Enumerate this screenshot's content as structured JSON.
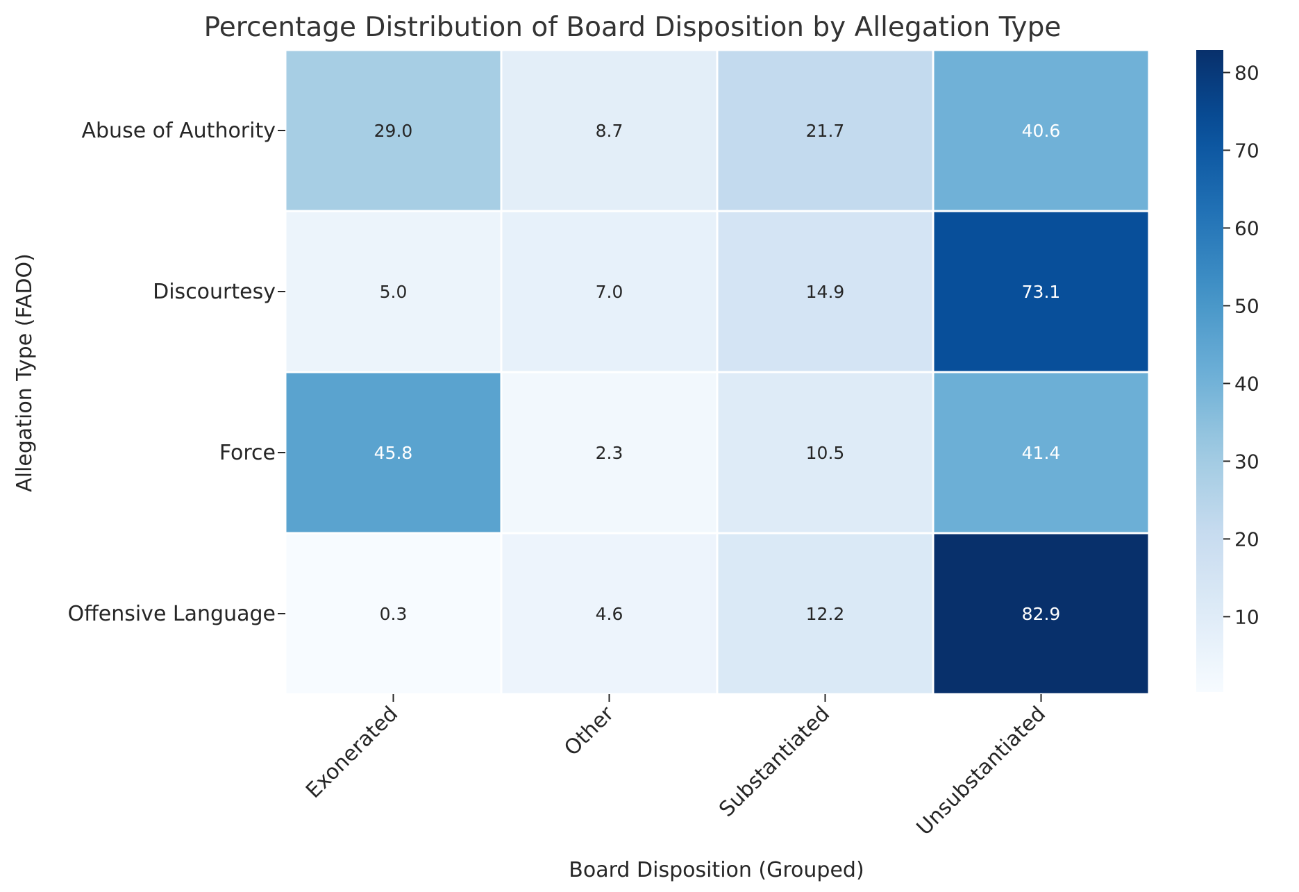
{
  "chart_data": {
    "type": "heatmap",
    "title": "Percentage Distribution of Board Disposition by Allegation Type",
    "xlabel": "Board Disposition (Grouped)",
    "ylabel": "Allegation Type (FADO)",
    "x_categories": [
      "Exonerated",
      "Other",
      "Substantiated",
      "Unsubstantiated"
    ],
    "y_categories": [
      "Abuse of Authority",
      "Discourtesy",
      "Force",
      "Offensive Language"
    ],
    "values": [
      [
        29.0,
        8.7,
        21.7,
        40.6
      ],
      [
        5.0,
        7.0,
        14.9,
        73.1
      ],
      [
        45.8,
        2.3,
        10.5,
        41.4
      ],
      [
        0.3,
        4.6,
        12.2,
        82.9
      ]
    ],
    "value_labels": [
      [
        "29.0",
        "8.7",
        "21.7",
        "40.6"
      ],
      [
        "5.0",
        "7.0",
        "14.9",
        "73.1"
      ],
      [
        "45.8",
        "2.3",
        "10.5",
        "41.4"
      ],
      [
        "0.3",
        "4.6",
        "12.2",
        "82.9"
      ]
    ],
    "colormap": "Blues",
    "colorbar": {
      "range": [
        0.3,
        82.9
      ],
      "ticks": [
        10,
        20,
        30,
        40,
        50,
        60,
        70,
        80
      ],
      "tick_labels": [
        "10",
        "20",
        "30",
        "40",
        "50",
        "60",
        "70",
        "80"
      ]
    },
    "colors": {
      "low": "#f7fbff",
      "high": "#08306b",
      "text_dark": "#262626",
      "text_light": "#ffffff"
    }
  }
}
